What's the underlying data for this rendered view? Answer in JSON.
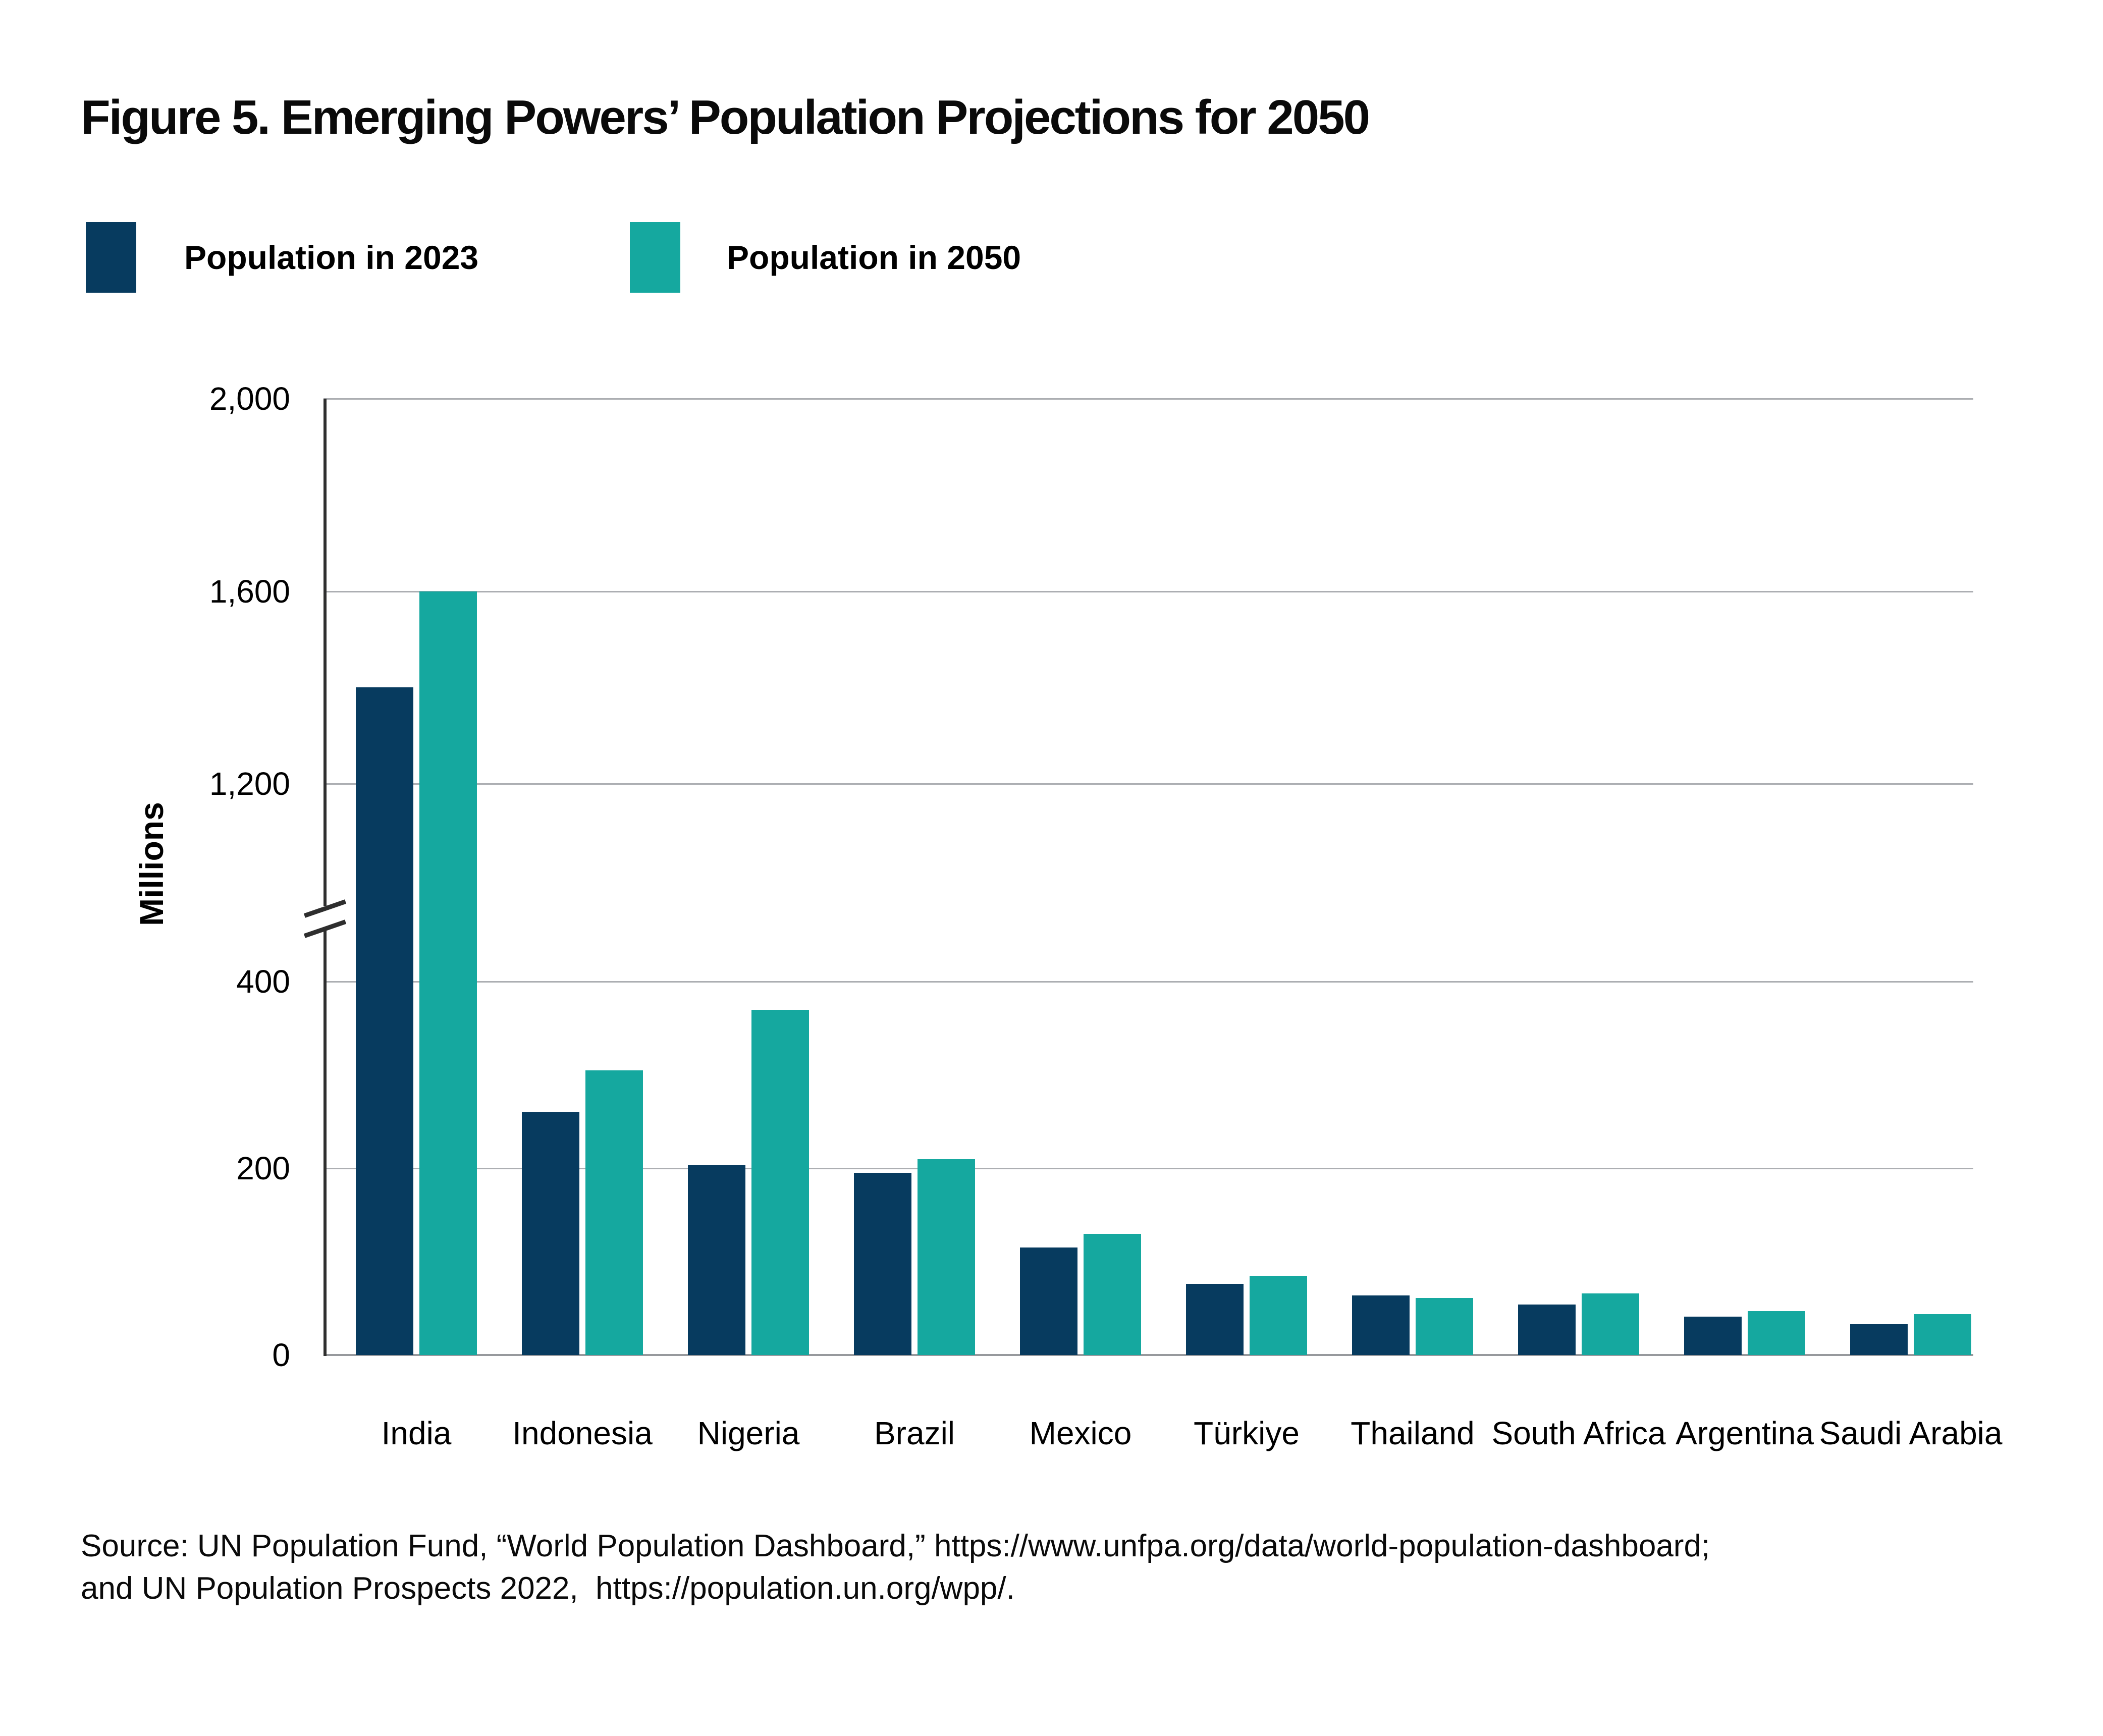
{
  "figure": {
    "title": "Figure 5. Emerging Powers’ Population Projections for 2050",
    "y_axis_title": "Millions",
    "source_line1": "Source: UN Population Fund, “World Population Dashboard,” https://www.unfpa.org/data/world-population-dashboard;",
    "source_line2": "and UN Population Prospects 2022,  https://population.un.org/wpp/."
  },
  "legend": {
    "items": [
      {
        "label": "Population in 2023",
        "color": "#073B5F"
      },
      {
        "label": "Population in 2050",
        "color": "#15A89F"
      }
    ]
  },
  "colors": {
    "bar_2023": "#073B5F",
    "bar_2050": "#15A89F",
    "gridline": "#ACAEB2",
    "baseline": "#97999D",
    "axis_line": "#2E2E2E",
    "text": "#000000"
  },
  "chart_data": {
    "type": "bar",
    "title": "Figure 5. Emerging Powers’ Population Projections for 2050",
    "xlabel": "",
    "ylabel": "Millions",
    "categories": [
      "India",
      "Indonesia",
      "Nigeria",
      "Brazil",
      "Mexico",
      "Türkiye",
      "Thailand",
      "South Africa",
      "Argentina",
      "Saudi Arabia"
    ],
    "series": [
      {
        "name": "Population in 2023",
        "color": "#073B5F",
        "values": [
          1400,
          260,
          203,
          195,
          115,
          76,
          64,
          54,
          41,
          33
        ]
      },
      {
        "name": "Population in 2050",
        "color": "#15A89F",
        "values": [
          1600,
          305,
          370,
          210,
          130,
          85,
          61,
          66,
          47,
          44
        ]
      }
    ],
    "units": "millions of people",
    "y_ticks": [
      {
        "value": 0,
        "label": "0"
      },
      {
        "value": 200,
        "label": "200"
      },
      {
        "value": 400,
        "label": "400"
      },
      {
        "value": 1200,
        "label": "1,200"
      },
      {
        "value": 1600,
        "label": "1,600"
      },
      {
        "value": 2000,
        "label": "2,000"
      }
    ],
    "gridline_values": [
      200,
      400,
      1200,
      1600,
      2000
    ],
    "axis_break": {
      "between": [
        400,
        1200
      ]
    },
    "ylim": [
      0,
      2000
    ],
    "grid": true,
    "legend_position": "top-left"
  }
}
